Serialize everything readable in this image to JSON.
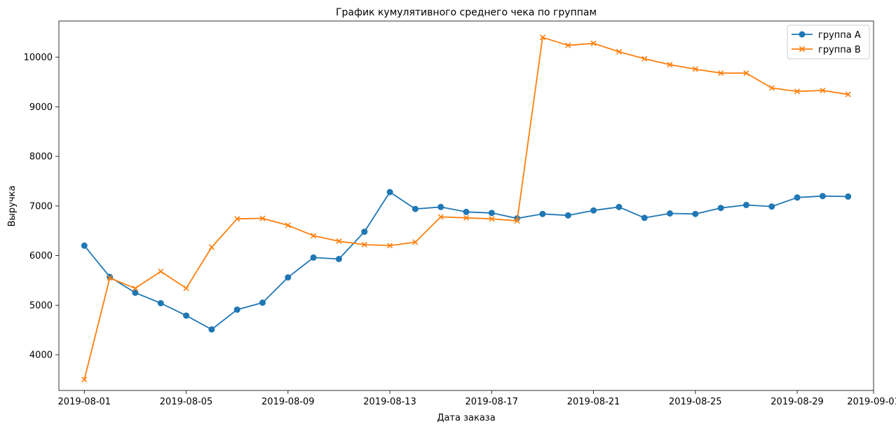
{
  "chart_data": {
    "type": "line",
    "title": "График кумулятивного среднего чека по группам",
    "xlabel": "Дата заказа",
    "ylabel": "Выручка",
    "x": [
      "2019-08-01",
      "2019-08-02",
      "2019-08-03",
      "2019-08-04",
      "2019-08-05",
      "2019-08-06",
      "2019-08-07",
      "2019-08-08",
      "2019-08-09",
      "2019-08-10",
      "2019-08-11",
      "2019-08-12",
      "2019-08-13",
      "2019-08-14",
      "2019-08-15",
      "2019-08-16",
      "2019-08-17",
      "2019-08-18",
      "2019-08-19",
      "2019-08-20",
      "2019-08-21",
      "2019-08-22",
      "2019-08-23",
      "2019-08-24",
      "2019-08-25",
      "2019-08-26",
      "2019-08-27",
      "2019-08-28",
      "2019-08-29",
      "2019-08-30",
      "2019-08-31"
    ],
    "xlim": [
      "2019-07-31",
      "2019-09-01"
    ],
    "ylim": [
      3280,
      10730
    ],
    "x_ticks": [
      "2019-08-01",
      "2019-08-05",
      "2019-08-09",
      "2019-08-13",
      "2019-08-17",
      "2019-08-21",
      "2019-08-25",
      "2019-08-29",
      "2019-09-01"
    ],
    "y_ticks": [
      4000,
      5000,
      6000,
      7000,
      8000,
      9000,
      10000
    ],
    "grid": false,
    "legend_position": "top-right",
    "series": [
      {
        "name": "группа A",
        "color": "#1f77b4",
        "marker": "circle",
        "values": [
          6200,
          5570,
          5250,
          5040,
          4790,
          4510,
          4910,
          5050,
          5560,
          5960,
          5930,
          6480,
          7280,
          6940,
          6980,
          6880,
          6860,
          6750,
          6840,
          6810,
          6910,
          6980,
          6760,
          6850,
          6840,
          6960,
          7020,
          6990,
          7170,
          7200,
          7190
        ]
      },
      {
        "name": "группа B",
        "color": "#ff7f0e",
        "marker": "x",
        "values": [
          3500,
          5550,
          5340,
          5680,
          5340,
          6170,
          6740,
          6750,
          6610,
          6400,
          6290,
          6220,
          6200,
          6270,
          6780,
          6760,
          6740,
          6700,
          10400,
          10240,
          10280,
          10110,
          9970,
          9850,
          9760,
          9680,
          9680,
          9380,
          9310,
          9330,
          9250
        ]
      }
    ]
  }
}
